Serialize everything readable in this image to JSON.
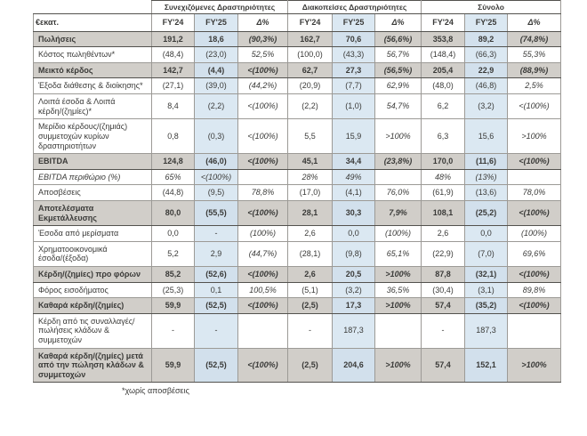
{
  "table": {
    "unit_header": "€εκατ.",
    "column_groups": [
      {
        "label": "Συνεχιζόμενες Δραστηριότητες",
        "columns": [
          "FY'24",
          "FY'25",
          "Δ%"
        ]
      },
      {
        "label": "Διακοπείσες Δραστηριότητες",
        "columns": [
          "FY'24",
          "FY'25",
          "Δ%"
        ]
      },
      {
        "label": "Σύνολο",
        "columns": [
          "FY'24",
          "FY'25",
          "Δ%"
        ]
      }
    ],
    "rows": [
      {
        "label": "Πωλήσεις",
        "style": "emphasis",
        "values": [
          "191,2",
          "18,6",
          "(90,3%)",
          "162,7",
          "70,6",
          "(56,6%)",
          "353,8",
          "89,2",
          "(74,8%)"
        ]
      },
      {
        "label": "Κόστος πωληθέντων*",
        "style": "",
        "values": [
          "(48,4)",
          "(23,0)",
          "52,5%",
          "(100,0)",
          "(43,3)",
          "56,7%",
          "(148,4)",
          "(66,3)",
          "55,3%"
        ]
      },
      {
        "label": "Μεικτό κέρδος",
        "style": "emphasis",
        "values": [
          "142,7",
          "(4,4)",
          "<(100%)",
          "62,7",
          "27,3",
          "(56,5%)",
          "205,4",
          "22,9",
          "(88,9%)"
        ]
      },
      {
        "label": "Έξοδα διάθεσης & διοίκησης*",
        "style": "",
        "values": [
          "(27,1)",
          "(39,0)",
          "(44,2%)",
          "(20,9)",
          "(7,7)",
          "62,9%",
          "(48,0)",
          "(46,8)",
          "2,5%"
        ]
      },
      {
        "label": "Λοιπά έσοδα & Λοιπά κέρδη/(ζημίες)*",
        "style": "",
        "values": [
          "8,4",
          "(2,2)",
          "<(100%)",
          "(2,2)",
          "(1,0)",
          "54,7%",
          "6,2",
          "(3,2)",
          "<(100%)"
        ]
      },
      {
        "label": "Μερίδιο κέρδους/(ζημιάς) συμμετοχών κυρίων δραστηριοτήτων",
        "style": "",
        "values": [
          "0,8",
          "(0,3)",
          "<(100%)",
          "5,5",
          "15,9",
          ">100%",
          "6,3",
          "15,6",
          ">100%"
        ]
      },
      {
        "label": "EBITDA",
        "style": "emphasis",
        "values": [
          "124,8",
          "(46,0)",
          "<(100%)",
          "45,1",
          "34,4",
          "(23,8%)",
          "170,0",
          "(11,6)",
          "<(100%)"
        ]
      },
      {
        "label": "EBITDA περιθώριο (%)",
        "style": "italic",
        "values": [
          "65%",
          "<(100%)",
          "",
          "28%",
          "49%",
          "",
          "48%",
          "(13%)",
          ""
        ]
      },
      {
        "label": "Αποσβέσεις",
        "style": "",
        "values": [
          "(44,8)",
          "(9,5)",
          "78,8%",
          "(17,0)",
          "(4,1)",
          "76,0%",
          "(61,9)",
          "(13,6)",
          "78,0%"
        ]
      },
      {
        "label": "Αποτελέσματα Εκμετάλλευσης",
        "style": "emphasis",
        "values": [
          "80,0",
          "(55,5)",
          "<(100%)",
          "28,1",
          "30,3",
          "7,9%",
          "108,1",
          "(25,2)",
          "<(100%)"
        ]
      },
      {
        "label": "Έσοδα από μερίσματα",
        "style": "",
        "values": [
          "0,0",
          "-",
          "(100%)",
          "2,6",
          "0,0",
          "(100%)",
          "2,6",
          "0,0",
          "(100%)"
        ]
      },
      {
        "label": "Χρηματοοικονομικά έσοδα/(έξοδα)",
        "style": "",
        "values": [
          "5,2",
          "2,9",
          "(44,7%)",
          "(28,1)",
          "(9,8)",
          "65,1%",
          "(22,9)",
          "(7,0)",
          "69,6%"
        ]
      },
      {
        "label": "Κέρδη/(ζημίες) προ φόρων",
        "style": "emphasis",
        "values": [
          "85,2",
          "(52,6)",
          "<(100%)",
          "2,6",
          "20,5",
          ">100%",
          "87,8",
          "(32,1)",
          "<(100%)"
        ]
      },
      {
        "label": "Φόρος εισοδήματος",
        "style": "",
        "values": [
          "(25,3)",
          "0,1",
          "100,5%",
          "(5,1)",
          "(3,2)",
          "36,5%",
          "(30,4)",
          "(3,1)",
          "89,8%"
        ]
      },
      {
        "label": "Καθαρά κέρδη/(ζημίες)",
        "style": "emphasis",
        "values": [
          "59,9",
          "(52,5)",
          "<(100%)",
          "(2,5)",
          "17,3",
          ">100%",
          "57,4",
          "(35,2)",
          "<(100%)"
        ]
      },
      {
        "label": "Κέρδη από τις συναλλαγές/πωλήσεις κλάδων & συμμετοχών",
        "style": "",
        "values": [
          "-",
          "-",
          "",
          "-",
          "187,3",
          "",
          "-",
          "187,3",
          ""
        ]
      },
      {
        "label": "Καθαρά κέρδη/(ζημίες) μετά από την πώληση κλάδων & συμμετοχών",
        "style": "emphasis",
        "values": [
          "59,9",
          "(52,5)",
          "<(100%)",
          "(2,5)",
          "204,6",
          ">100%",
          "57,4",
          "152,1",
          ">100%"
        ]
      }
    ],
    "footnote": "*χωρίς αποσβέσεις"
  },
  "colors": {
    "emphasis_row_bg": "#d1cec9",
    "fy25_col_bg": "#dbe8f2",
    "fy25_emphasis_bg": "#d2e0ec",
    "dark_border": "#53524e",
    "light_border": "#9c9a96",
    "text": "#3a3a38"
  }
}
